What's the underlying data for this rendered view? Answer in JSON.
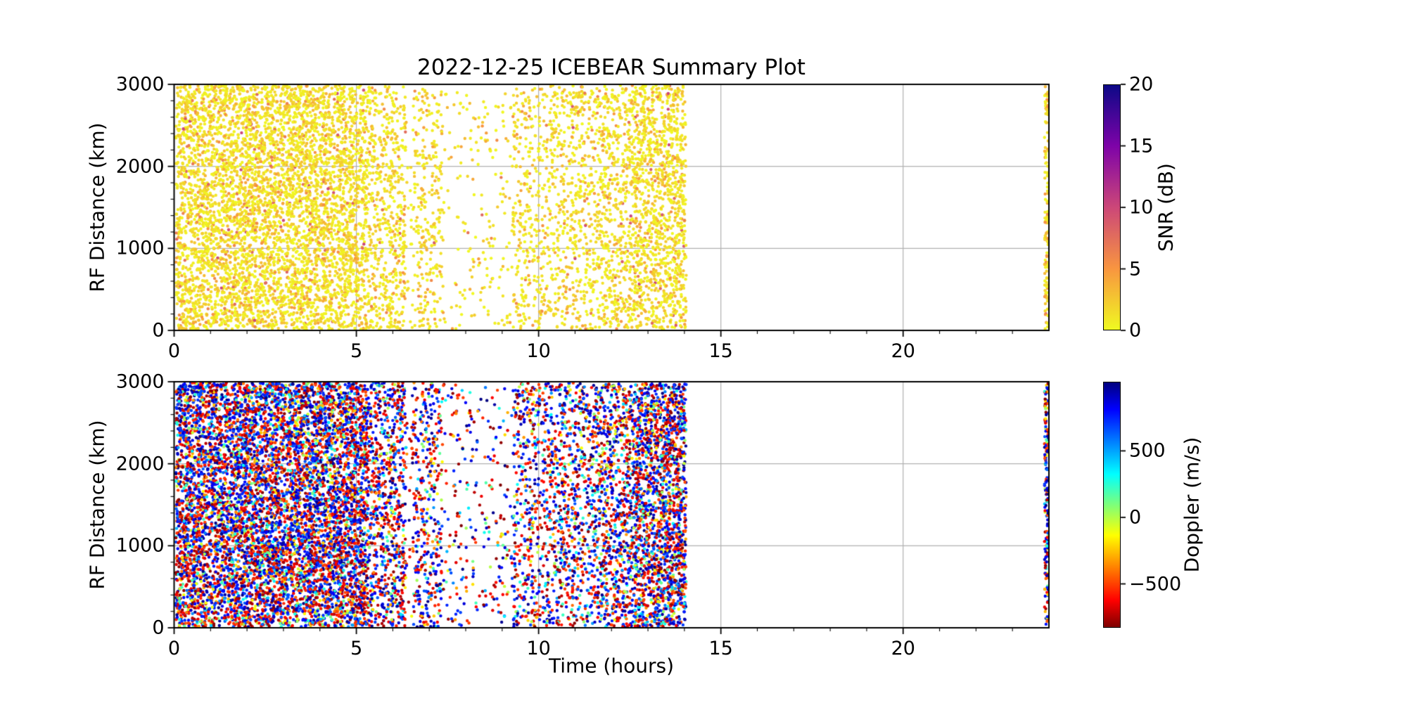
{
  "figure": {
    "title": "2022-12-25 ICEBEAR Summary Plot",
    "background": "#ffffff",
    "grid_color": "#b0b0b0",
    "spine_color": "#000000",
    "text_color": "#000000"
  },
  "chart_data": [
    {
      "type": "scatter",
      "name": "snr-vs-time-panel",
      "xlabel": "",
      "ylabel": "RF Distance (km)",
      "xlim": [
        0,
        24
      ],
      "ylim": [
        0,
        3000
      ],
      "grid": true,
      "legend": "none",
      "xticks": {
        "values": [
          0,
          5,
          10,
          15,
          20
        ],
        "labels": [
          "0",
          "5",
          "10",
          "15",
          "20"
        ],
        "minor_step": 1
      },
      "yticks": {
        "values": [
          0,
          1000,
          2000,
          3000
        ],
        "labels": [
          "0",
          "1000",
          "2000",
          "3000"
        ],
        "minor_step": 200
      },
      "colorbar": {
        "label": "SNR (dB)",
        "vmin": 0,
        "vmax": 20,
        "ticks": {
          "values": [
            20,
            15,
            10,
            5,
            0
          ],
          "labels": [
            "20",
            "15",
            "10",
            "5",
            "0"
          ]
        },
        "colormap": "plasma_r",
        "anchors": [
          [
            0,
            "#0d0887"
          ],
          [
            0.25,
            "#7e03a8"
          ],
          [
            0.5,
            "#cc4778"
          ],
          [
            0.75,
            "#f89540"
          ],
          [
            1,
            "#f0f921"
          ]
        ]
      },
      "points": {
        "seed": 20221225,
        "marker_radius": 2.2,
        "y_range": [
          12,
          2988
        ],
        "value_model": {
          "kind": "exponential",
          "mean": 1.7,
          "clamp": [
            0,
            10
          ]
        },
        "time_bands": [
          {
            "t0": 0.05,
            "t1": 5.3,
            "count": 5000
          },
          {
            "t0": 5.3,
            "t1": 6.35,
            "count": 560
          },
          {
            "t0": 6.35,
            "t1": 6.55,
            "count": 18
          },
          {
            "t0": 6.55,
            "t1": 7.35,
            "count": 280
          },
          {
            "t0": 7.35,
            "t1": 9.3,
            "count": 180
          },
          {
            "t0": 9.3,
            "t1": 10.6,
            "count": 450
          },
          {
            "t0": 10.6,
            "t1": 11.6,
            "count": 410
          },
          {
            "t0": 11.6,
            "t1": 12.6,
            "count": 560
          },
          {
            "t0": 12.6,
            "t1": 14.05,
            "count": 1150
          },
          {
            "t0": 23.88,
            "t1": 23.98,
            "count": 130
          }
        ]
      }
    },
    {
      "type": "scatter",
      "name": "doppler-vs-time-panel",
      "xlabel": "Time (hours)",
      "ylabel": "RF Distance (km)",
      "xlim": [
        0,
        24
      ],
      "ylim": [
        0,
        3000
      ],
      "grid": true,
      "legend": "none",
      "xticks": {
        "values": [
          0,
          5,
          10,
          15,
          20
        ],
        "labels": [
          "0",
          "5",
          "10",
          "15",
          "20"
        ],
        "minor_step": 1
      },
      "yticks": {
        "values": [
          0,
          1000,
          2000,
          3000
        ],
        "labels": [
          "0",
          "1000",
          "2000",
          "3000"
        ],
        "minor_step": 200
      },
      "colorbar": {
        "label": "Doppler (m/s)",
        "vmin": -830,
        "vmax": 1020,
        "ticks": {
          "values": [
            500,
            0,
            -500
          ],
          "labels": [
            "500",
            "0",
            "−500"
          ]
        },
        "colormap": "jet_r",
        "anchors": [
          [
            0,
            "#00007f"
          ],
          [
            0.11,
            "#0000ff"
          ],
          [
            0.375,
            "#00ffff"
          ],
          [
            0.5,
            "#7dff7a"
          ],
          [
            0.625,
            "#ffff00"
          ],
          [
            0.89,
            "#ff0000"
          ],
          [
            1,
            "#7f0000"
          ]
        ]
      },
      "points": {
        "seed": 774422,
        "marker_radius": 2.2,
        "y_range": [
          12,
          2988
        ],
        "value_model": {
          "kind": "mixture",
          "pos_frac": 0.3,
          "pos_range": [
            650,
            1020
          ],
          "neg_frac": 0.3,
          "neg_range": [
            -830,
            -480
          ],
          "uniform_range": [
            -830,
            1020
          ]
        },
        "time_bands": [
          {
            "t0": 0.05,
            "t1": 5.3,
            "count": 7300
          },
          {
            "t0": 5.3,
            "t1": 6.35,
            "count": 800
          },
          {
            "t0": 6.35,
            "t1": 6.55,
            "count": 25
          },
          {
            "t0": 6.55,
            "t1": 7.35,
            "count": 390
          },
          {
            "t0": 7.35,
            "t1": 9.3,
            "count": 250
          },
          {
            "t0": 9.3,
            "t1": 10.6,
            "count": 630
          },
          {
            "t0": 10.6,
            "t1": 11.6,
            "count": 570
          },
          {
            "t0": 11.6,
            "t1": 12.6,
            "count": 790
          },
          {
            "t0": 12.6,
            "t1": 14.05,
            "count": 1800
          },
          {
            "t0": 23.88,
            "t1": 23.98,
            "count": 180
          }
        ]
      }
    }
  ]
}
